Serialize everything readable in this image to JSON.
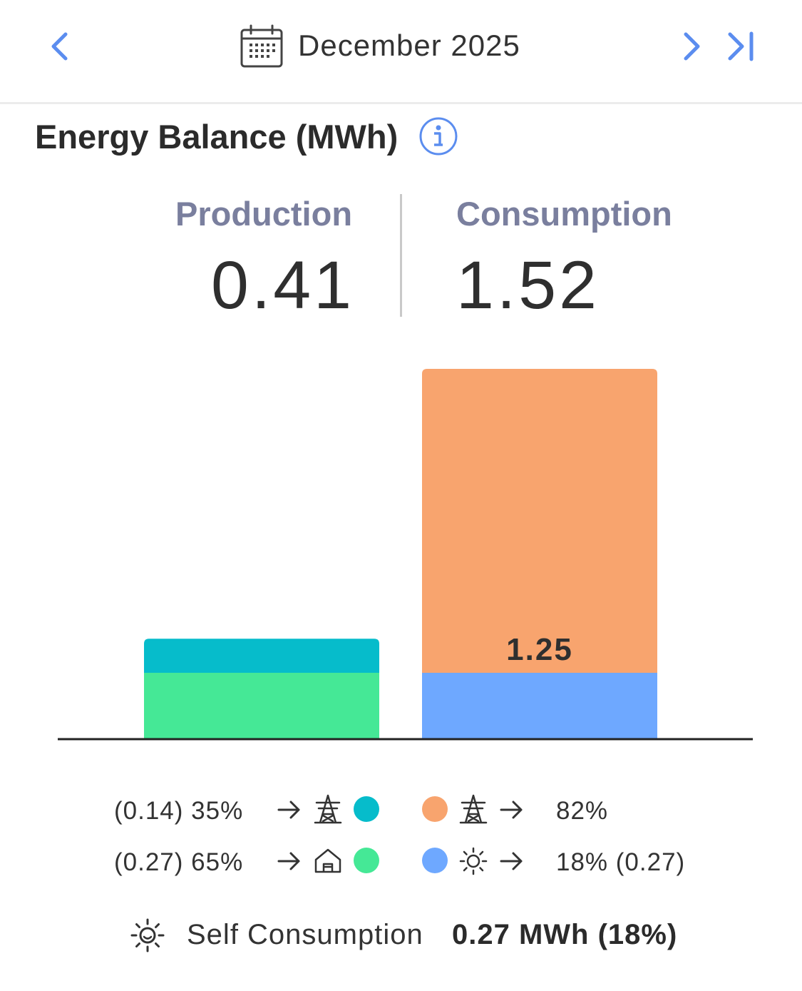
{
  "header": {
    "month_label": "December 2025",
    "prev_icon": "chevron-left-icon",
    "next_icon": "chevron-right-icon",
    "last_icon": "skip-to-last-icon",
    "calendar_icon": "calendar-icon"
  },
  "section": {
    "title": "Energy Balance (MWh)",
    "info_icon": "info-icon"
  },
  "summary": {
    "production_label": "Production",
    "production_value": "0.41",
    "consumption_label": "Consumption",
    "consumption_value": "1.52"
  },
  "colors": {
    "accent": "#5b8def",
    "export": "#06bccb",
    "self_use": "#45e896",
    "import": "#f8a46e",
    "self_consumed": "#6ea8ff",
    "baseline": "#222222"
  },
  "chart_data": {
    "type": "bar",
    "stacked": true,
    "categories": [
      "Production",
      "Consumption"
    ],
    "series": [
      {
        "color": "#45e896",
        "values": [
          0.27,
          0
        ]
      },
      {
        "color": "#06bccb",
        "values": [
          0.14,
          0
        ]
      },
      {
        "color": "#6ea8ff",
        "values": [
          0,
          0.27
        ]
      },
      {
        "color": "#f8a46e",
        "values": [
          0,
          1.25
        ]
      }
    ],
    "data_labels": [
      {
        "category": "Consumption",
        "text": "1.25"
      }
    ],
    "ylim": [
      0,
      1.52
    ],
    "grid": false,
    "axis_labels": false
  },
  "legend": {
    "production": [
      {
        "text": "(0.14) 35%",
        "icon": "power-tower-icon",
        "color": "#06bccb"
      },
      {
        "text": "(0.27) 65%",
        "icon": "home-icon",
        "color": "#45e896"
      }
    ],
    "consumption": [
      {
        "text": "82%",
        "icon": "power-tower-icon",
        "color": "#f8a46e"
      },
      {
        "text": "18% (0.27)",
        "icon": "sun-icon",
        "color": "#6ea8ff"
      }
    ]
  },
  "self_consumption": {
    "label": "Self Consumption",
    "value": "0.27 MWh (18%)",
    "icon": "sun-icon"
  }
}
